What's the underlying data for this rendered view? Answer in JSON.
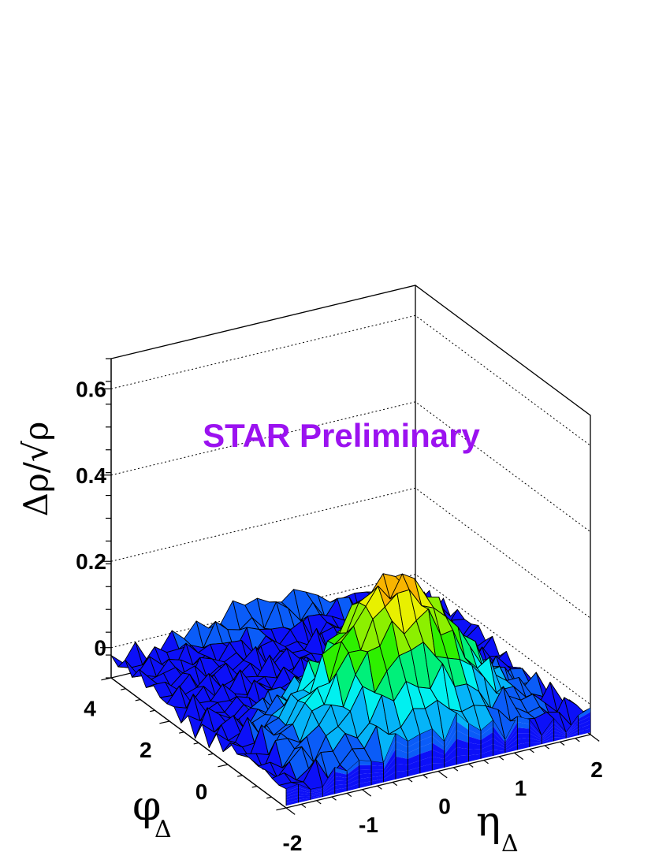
{
  "chart_data": {
    "type": "surface",
    "annotation": "STAR Preliminary",
    "annotation_color": "#9b12f0",
    "xlabel": "η",
    "xlabel_sub": "Δ",
    "ylabel": "φ",
    "ylabel_sub": "Δ",
    "zlabel": "Δρ/√ρ",
    "xlim": [
      -2,
      2
    ],
    "ylim": [
      -1.57,
      4.71
    ],
    "zlim": [
      -0.07,
      0.67
    ],
    "x_ticks": [
      "-2",
      "-1",
      "0",
      "1",
      "2"
    ],
    "y_ticks": [
      "0",
      "2",
      "4"
    ],
    "z_ticks": [
      "0",
      "0.2",
      "0.4",
      "0.6"
    ],
    "grid": true,
    "x_bins": 25,
    "y_bins": 25,
    "sameside_peak": {
      "eta": 0.0,
      "phi": 0.0,
      "amplitude": 0.34,
      "width_eta": 0.75,
      "width_phi": 0.85,
      "baseline": -0.04
    },
    "awayside_ridge": {
      "phi": 3.14,
      "amplitude": 0.04
    },
    "colormap": [
      "#0c10f8",
      "#0a5cf8",
      "#05b4f8",
      "#00f0f0",
      "#00f07a",
      "#2ef000",
      "#8cf000",
      "#e8f000",
      "#f8b400",
      "#f86200",
      "#f80000"
    ]
  }
}
